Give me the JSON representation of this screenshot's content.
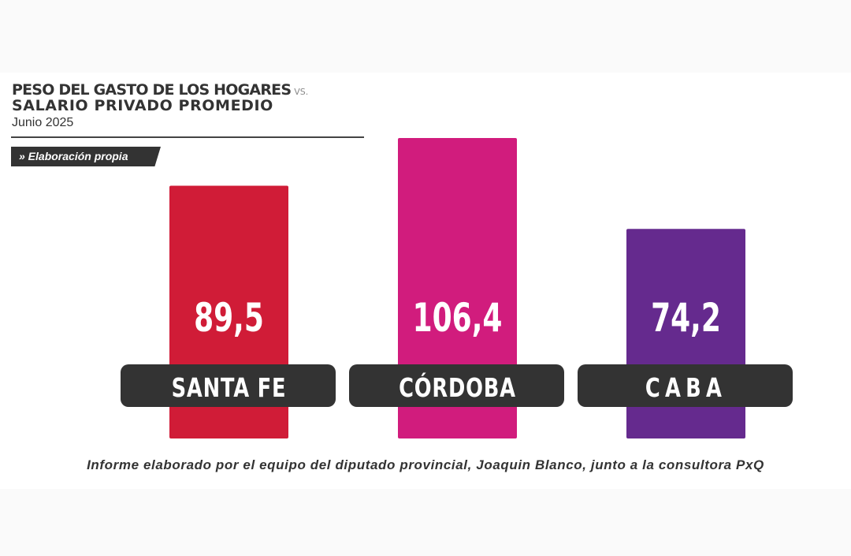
{
  "title_line1": "PESO DEL GASTO DE LOS HOGARES",
  "title_vs": "VS.",
  "title_line2": "SALARIO PRIVADO PROMEDIO",
  "subtitle": "Junio 2025",
  "source_tag": "» Elaboración propia",
  "footer": "Informe elaborado por el equipo del diputado provincial, Joaquin Blanco, junto a la consultora PxQ",
  "chart_data": {
    "type": "bar",
    "title": "PESO DEL GASTO DE LOS HOGARES VS. SALARIO PRIVADO PROMEDIO",
    "subtitle": "Junio 2025",
    "categories": [
      "SANTA FE",
      "CÓRDOBA",
      "CABA"
    ],
    "values": [
      89.5,
      106.4,
      74.2
    ],
    "value_labels": [
      "89,5",
      "106,4",
      "74,2"
    ],
    "colors": [
      "#d01c37",
      "#d11c7d",
      "#652a8e"
    ],
    "label_pill_color": "#333333",
    "ylim": [
      0,
      106.4
    ],
    "grid": false,
    "legend": "none"
  }
}
